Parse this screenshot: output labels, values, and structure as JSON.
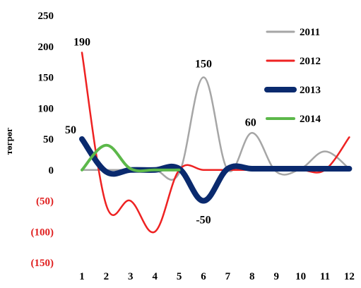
{
  "chart_data": {
    "type": "line",
    "ylabel": "төгрөг",
    "xlabel": "",
    "title": "",
    "x": [
      1,
      2,
      3,
      4,
      5,
      6,
      7,
      8,
      9,
      10,
      11,
      12
    ],
    "xtick_labels": [
      "1",
      "2",
      "3",
      "4",
      "5",
      "6",
      "7",
      "8",
      "9",
      "10",
      "11",
      "12"
    ],
    "ylim": [
      -150,
      250
    ],
    "yticks": [
      {
        "value": 250,
        "label": "250",
        "color": "#000000"
      },
      {
        "value": 200,
        "label": "200",
        "color": "#000000"
      },
      {
        "value": 150,
        "label": "150",
        "color": "#000000"
      },
      {
        "value": 100,
        "label": "100",
        "color": "#000000"
      },
      {
        "value": 50,
        "label": "50",
        "color": "#000000"
      },
      {
        "value": 0,
        "label": "0",
        "color": "#000000"
      },
      {
        "value": -50,
        "label": "(50)",
        "color": "#e02020"
      },
      {
        "value": -100,
        "label": "(100)",
        "color": "#e02020"
      },
      {
        "value": -150,
        "label": "(150)",
        "color": "#e02020"
      }
    ],
    "grid": false,
    "legend_position": "top-right",
    "series": [
      {
        "name": "2011",
        "color": "#a6a6a6",
        "width": 2.5,
        "x": [
          1,
          2,
          3,
          4,
          5,
          6,
          7,
          8,
          9,
          10,
          11,
          12
        ],
        "values": [
          0,
          0,
          0,
          0,
          -5,
          150,
          0,
          60,
          -3,
          2,
          30,
          2
        ]
      },
      {
        "name": "2012",
        "color": "#ee2222",
        "width": 2.5,
        "x": [
          1,
          2,
          3,
          4,
          5,
          6,
          7,
          8,
          9,
          10,
          11,
          12
        ],
        "values": [
          190,
          -57,
          -50,
          -100,
          0,
          0,
          0,
          0,
          0,
          0,
          0,
          53
        ]
      },
      {
        "name": "2013",
        "color": "#0a2a6e",
        "width": 8,
        "x": [
          1,
          2,
          3,
          4,
          5,
          6,
          7,
          8,
          9,
          10,
          11,
          12
        ],
        "values": [
          50,
          -3,
          0,
          0,
          2,
          -50,
          2,
          2,
          2,
          2,
          2,
          2
        ]
      },
      {
        "name": "2014",
        "color": "#5cb84a",
        "width": 4,
        "x": [
          1,
          2,
          3,
          4,
          5
        ],
        "values": [
          0,
          40,
          2,
          0,
          0
        ]
      }
    ],
    "annotations": [
      {
        "text": "190",
        "x": 1,
        "y": 190
      },
      {
        "text": "50",
        "x": 1,
        "y": 50
      },
      {
        "text": "150",
        "x": 6,
        "y": 150
      },
      {
        "text": "60",
        "x": 8,
        "y": 60
      },
      {
        "text": "-50",
        "x": 6,
        "y": -50
      }
    ]
  }
}
